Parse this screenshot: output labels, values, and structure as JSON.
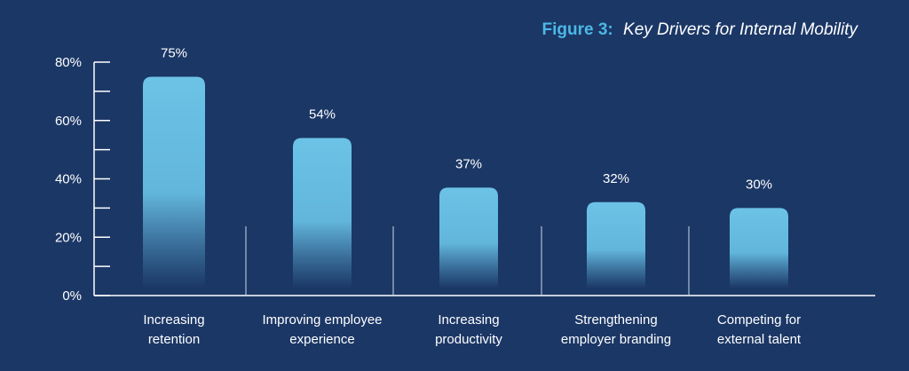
{
  "figure": {
    "label": "Figure 3:",
    "title": "Key Drivers for Internal Mobility"
  },
  "colors": {
    "background": "#1b3766",
    "bar_top": "#6cc3e6",
    "title_label": "#4cb8e6",
    "title_text": "#ffffff",
    "axis": "#ffffff"
  },
  "chart_data": {
    "type": "bar",
    "title": "Figure 3: Key Drivers for Internal Mobility",
    "categories": [
      [
        "Increasing",
        "retention"
      ],
      [
        "Improving employee",
        "experience"
      ],
      [
        "Increasing",
        "productivity"
      ],
      [
        "Strengthening",
        "employer branding"
      ],
      [
        "Competing for",
        "external talent"
      ]
    ],
    "values": [
      75,
      54,
      37,
      32,
      30
    ],
    "value_labels": [
      "75%",
      "54%",
      "37%",
      "32%",
      "30%"
    ],
    "ylim": [
      0,
      80
    ],
    "y_ticks": [
      0,
      20,
      40,
      60,
      80
    ],
    "y_tick_labels": [
      "0%",
      "20%",
      "40%",
      "60%",
      "80%"
    ],
    "grid": false,
    "legend": "none"
  }
}
